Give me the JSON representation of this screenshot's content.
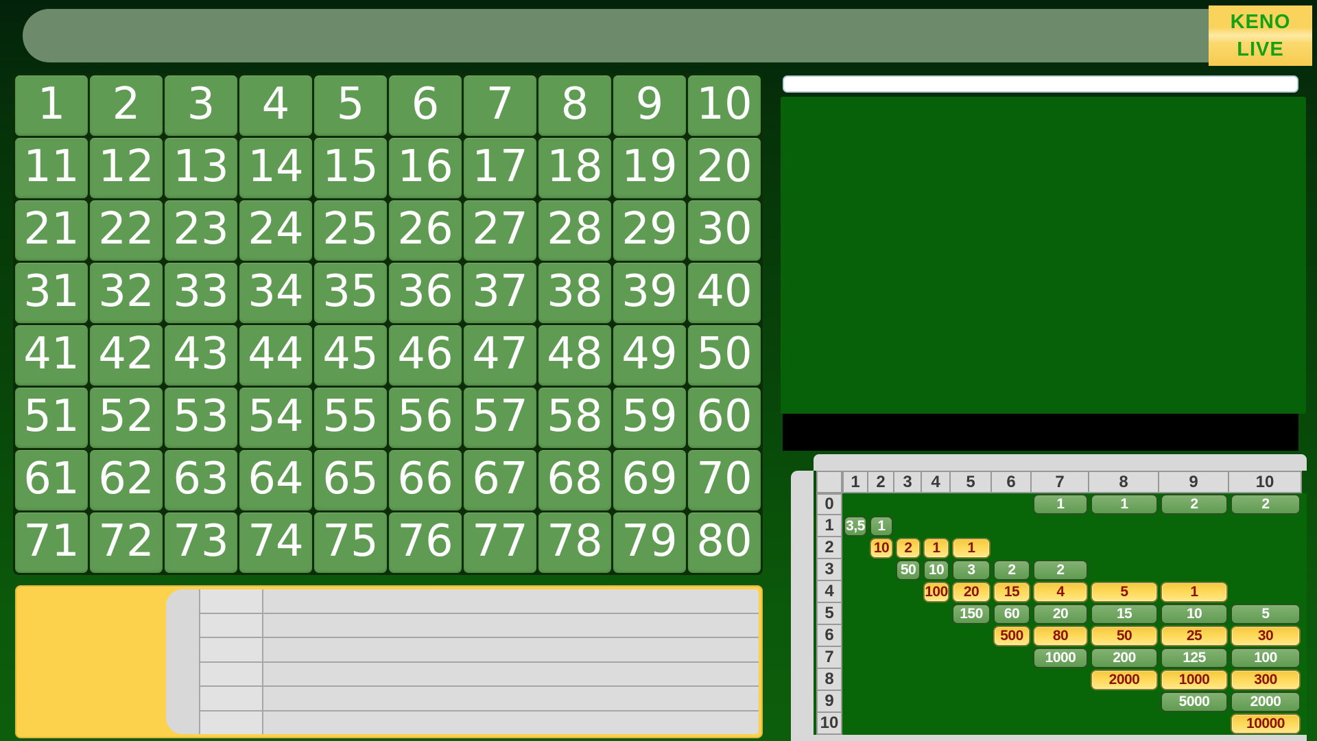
{
  "header": {
    "brand_line1": "KENO",
    "brand_line2": "LIVE"
  },
  "board": {
    "numbers": [
      1,
      2,
      3,
      4,
      5,
      6,
      7,
      8,
      9,
      10,
      11,
      12,
      13,
      14,
      15,
      16,
      17,
      18,
      19,
      20,
      21,
      22,
      23,
      24,
      25,
      26,
      27,
      28,
      29,
      30,
      31,
      32,
      33,
      34,
      35,
      36,
      37,
      38,
      39,
      40,
      41,
      42,
      43,
      44,
      45,
      46,
      47,
      48,
      49,
      50,
      51,
      52,
      53,
      54,
      55,
      56,
      57,
      58,
      59,
      60,
      61,
      62,
      63,
      64,
      65,
      66,
      67,
      68,
      69,
      70,
      71,
      72,
      73,
      74,
      75,
      76,
      77,
      78,
      79,
      80
    ]
  },
  "ticket_panel": {
    "history_row_count": 6
  },
  "paytable": {
    "column_headers": [
      "1",
      "2",
      "3",
      "4",
      "5",
      "6",
      "7",
      "8",
      "9",
      "10"
    ],
    "row_headers": [
      "0",
      "1",
      "2",
      "3",
      "4",
      "5",
      "6",
      "7",
      "8",
      "9",
      "10"
    ],
    "cells": [
      {
        "row": 0,
        "col": 7,
        "value": "1",
        "variant": "green"
      },
      {
        "row": 0,
        "col": 8,
        "value": "1",
        "variant": "green"
      },
      {
        "row": 0,
        "col": 9,
        "value": "2",
        "variant": "green"
      },
      {
        "row": 0,
        "col": 10,
        "value": "2",
        "variant": "green"
      },
      {
        "row": 1,
        "col": 1,
        "value": "3,5",
        "variant": "green"
      },
      {
        "row": 1,
        "col": 2,
        "value": "1",
        "variant": "green"
      },
      {
        "row": 2,
        "col": 2,
        "value": "10",
        "variant": "yellow"
      },
      {
        "row": 2,
        "col": 3,
        "value": "2",
        "variant": "yellow"
      },
      {
        "row": 2,
        "col": 4,
        "value": "1",
        "variant": "yellow"
      },
      {
        "row": 2,
        "col": 5,
        "value": "1",
        "variant": "yellow"
      },
      {
        "row": 3,
        "col": 3,
        "value": "50",
        "variant": "green"
      },
      {
        "row": 3,
        "col": 4,
        "value": "10",
        "variant": "green"
      },
      {
        "row": 3,
        "col": 5,
        "value": "3",
        "variant": "green"
      },
      {
        "row": 3,
        "col": 6,
        "value": "2",
        "variant": "green"
      },
      {
        "row": 3,
        "col": 7,
        "value": "2",
        "variant": "green"
      },
      {
        "row": 4,
        "col": 4,
        "value": "100",
        "variant": "yellow"
      },
      {
        "row": 4,
        "col": 5,
        "value": "20",
        "variant": "yellow"
      },
      {
        "row": 4,
        "col": 6,
        "value": "15",
        "variant": "yellow"
      },
      {
        "row": 4,
        "col": 7,
        "value": "4",
        "variant": "yellow"
      },
      {
        "row": 4,
        "col": 8,
        "value": "5",
        "variant": "yellow"
      },
      {
        "row": 4,
        "col": 9,
        "value": "1",
        "variant": "yellow"
      },
      {
        "row": 5,
        "col": 5,
        "value": "150",
        "variant": "green"
      },
      {
        "row": 5,
        "col": 6,
        "value": "60",
        "variant": "green"
      },
      {
        "row": 5,
        "col": 7,
        "value": "20",
        "variant": "green"
      },
      {
        "row": 5,
        "col": 8,
        "value": "15",
        "variant": "green"
      },
      {
        "row": 5,
        "col": 9,
        "value": "10",
        "variant": "green"
      },
      {
        "row": 5,
        "col": 10,
        "value": "5",
        "variant": "green"
      },
      {
        "row": 6,
        "col": 6,
        "value": "500",
        "variant": "yellow"
      },
      {
        "row": 6,
        "col": 7,
        "value": "80",
        "variant": "yellow"
      },
      {
        "row": 6,
        "col": 8,
        "value": "50",
        "variant": "yellow"
      },
      {
        "row": 6,
        "col": 9,
        "value": "25",
        "variant": "yellow"
      },
      {
        "row": 6,
        "col": 10,
        "value": "30",
        "variant": "yellow"
      },
      {
        "row": 7,
        "col": 7,
        "value": "1000",
        "variant": "green"
      },
      {
        "row": 7,
        "col": 8,
        "value": "200",
        "variant": "green"
      },
      {
        "row": 7,
        "col": 9,
        "value": "125",
        "variant": "green"
      },
      {
        "row": 7,
        "col": 10,
        "value": "100",
        "variant": "green"
      },
      {
        "row": 8,
        "col": 8,
        "value": "2000",
        "variant": "yellow"
      },
      {
        "row": 8,
        "col": 9,
        "value": "1000",
        "variant": "yellow"
      },
      {
        "row": 8,
        "col": 10,
        "value": "300",
        "variant": "yellow"
      },
      {
        "row": 9,
        "col": 9,
        "value": "5000",
        "variant": "green"
      },
      {
        "row": 9,
        "col": 10,
        "value": "2000",
        "variant": "green"
      },
      {
        "row": 10,
        "col": 10,
        "value": "10000",
        "variant": "yellow"
      }
    ]
  },
  "colors": {
    "background_top": "#03220a",
    "background_bottom": "#0c5e0c",
    "top_bar": "#6d8a6a",
    "brand_badge_gold": "#fad35c",
    "brand_text_green": "#16a016",
    "tile_green": "#5f9b52",
    "ticket_yellow": "#fcd14b",
    "history_gray": "#dcdcdc",
    "draw_bar_white": "#ffffff",
    "draw_panel_green": "#076108",
    "message_bar_black": "#000000",
    "paytable_frame_gray": "#d8d8d8",
    "pill_green": "#609c51",
    "pill_yellow": "#ffdc5e",
    "pill_yellow_text": "#8d1206"
  }
}
